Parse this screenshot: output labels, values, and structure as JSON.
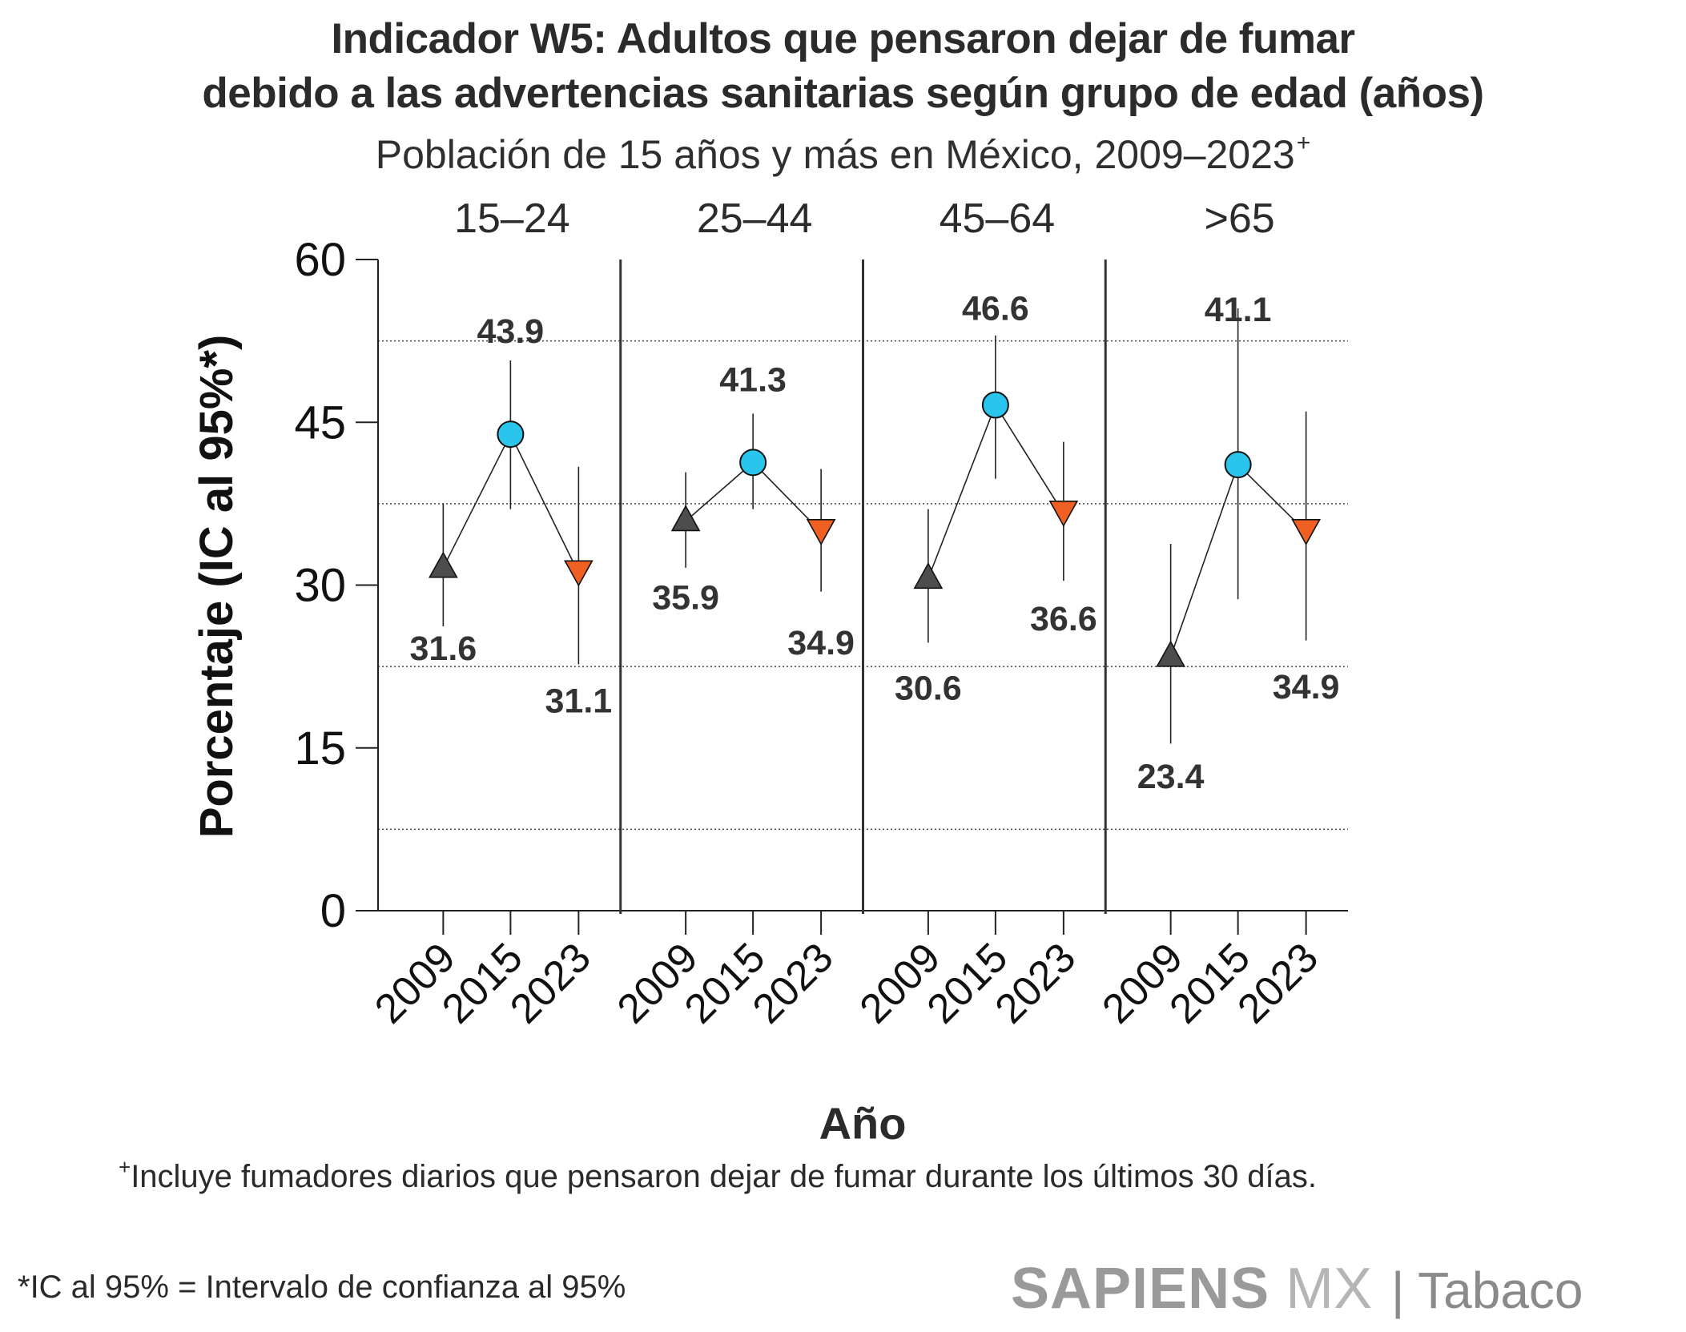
{
  "header": {
    "title_line1": "Indicador W5: Adultos que pensaron dejar de fumar",
    "title_line2": "debido a las advertencias sanitarias según grupo de edad (años)",
    "subtitle": "Población de 15 años y más en México, 2009–2023",
    "subtitle_mark": "+"
  },
  "chart_data": {
    "type": "scatter",
    "ylabel": "Porcentaje (IC al 95%*)",
    "xlabel": "Año",
    "ylim": [
      0,
      60
    ],
    "yticks": [
      "0",
      "15",
      "30",
      "45",
      "60"
    ],
    "gridlines": [
      7.5,
      22.5,
      37.5,
      52.5
    ],
    "years": [
      "2009",
      "2015",
      "2023"
    ],
    "colors": {
      "2009": "#4d4d4d",
      "2015": "#29c5ec",
      "2023": "#f06022"
    },
    "markers": {
      "2009": "triangle-up",
      "2015": "circle",
      "2023": "triangle-down"
    },
    "groups": [
      {
        "name": "15–24",
        "values": [
          31.6,
          43.9,
          31.1
        ],
        "labels": [
          "31.6",
          "43.9",
          "31.1"
        ],
        "ci": [
          [
            26.2,
            37.5
          ],
          [
            37.0,
            50.7
          ],
          [
            22.7,
            40.9
          ]
        ]
      },
      {
        "name": "25–44",
        "values": [
          35.9,
          41.3,
          34.9
        ],
        "labels": [
          "35.9",
          "41.3",
          "34.9"
        ],
        "ci": [
          [
            31.6,
            40.4
          ],
          [
            37.0,
            45.8
          ],
          [
            29.4,
            40.7
          ]
        ]
      },
      {
        "name": "45–64",
        "values": [
          30.6,
          46.6,
          36.6
        ],
        "labels": [
          "30.6",
          "46.6",
          "36.6"
        ],
        "ci": [
          [
            24.7,
            37.0
          ],
          [
            39.8,
            53.0
          ],
          [
            30.4,
            43.2
          ]
        ]
      },
      {
        "name": ">65",
        "values": [
          23.4,
          41.1,
          34.9
        ],
        "labels": [
          "23.4",
          "41.1",
          "34.9"
        ],
        "ci": [
          [
            15.4,
            33.8
          ],
          [
            28.7,
            55.5
          ],
          [
            24.9,
            46.0
          ]
        ]
      }
    ]
  },
  "footnotes": {
    "note1_mark": "+",
    "note1": "Incluye fumadores diarios que pensaron dejar de fumar durante los últimos 30 días.",
    "note2": "*IC al 95% = Intervalo de confianza al 95%"
  },
  "brand": {
    "part1": "SAPIENS",
    "part2": " MX",
    "part3": " | Tabaco"
  }
}
